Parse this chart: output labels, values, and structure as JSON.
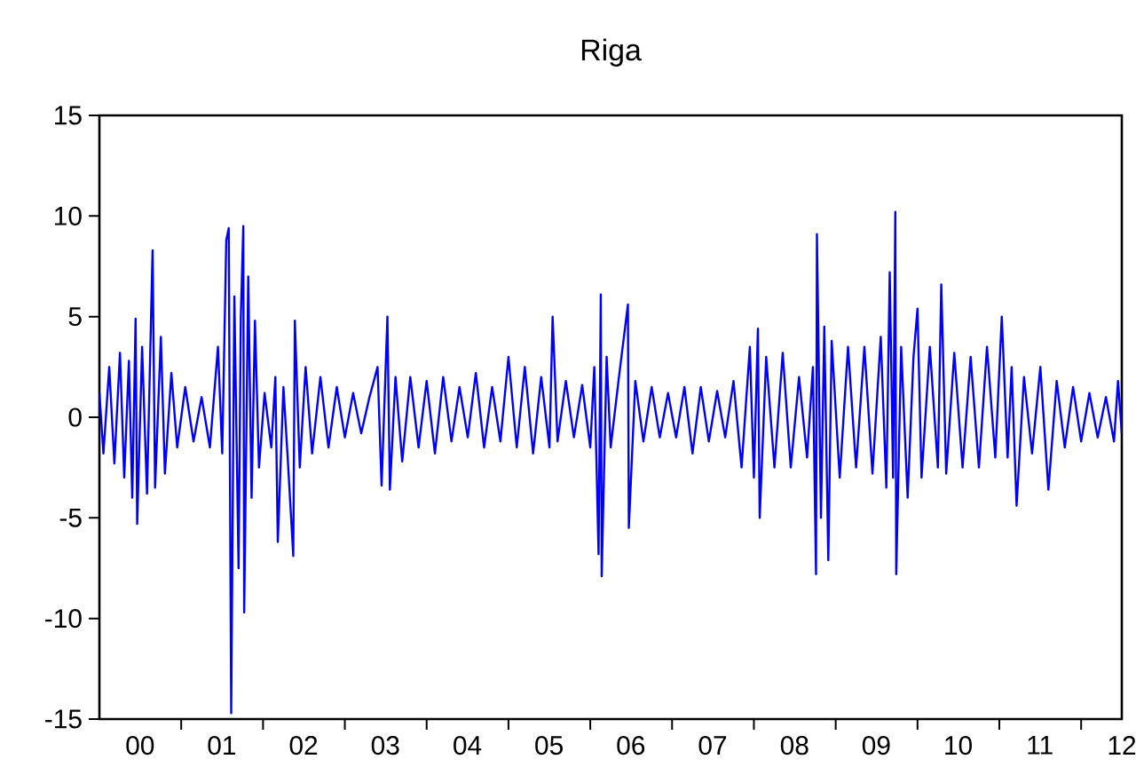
{
  "chart_data": {
    "type": "line",
    "title": "Riga",
    "x": [
      "2000-01-01",
      "2000-01-19",
      "2000-02-14",
      "2000-03-08",
      "2000-04-02",
      "2000-04-21",
      "2000-05-12",
      "2000-05-27",
      "2000-06-11",
      "2000-06-18",
      "2000-07-10",
      "2000-08-01",
      "2000-08-26",
      "2000-09-06",
      "2000-10-02",
      "2000-10-20",
      "2000-11-18",
      "2000-12-14",
      "2001-01-19",
      "2001-02-25",
      "2001-04-02",
      "2001-05-09",
      "2001-06-14",
      "2001-07-03",
      "2001-07-21",
      "2001-08-01",
      "2001-08-12",
      "2001-08-26",
      "2001-09-14",
      "2001-09-24",
      "2001-10-05",
      "2001-10-09",
      "2001-10-27",
      "2001-11-11",
      "2001-11-26",
      "2001-12-14",
      "2002-01-08",
      "2002-02-07",
      "2002-02-25",
      "2002-03-08",
      "2002-04-02",
      "2002-04-21",
      "2002-05-16",
      "2002-05-23",
      "2002-06-14",
      "2002-07-10",
      "2002-08-08",
      "2002-09-14",
      "2002-10-20",
      "2002-11-26",
      "2003-01-01",
      "2003-02-07",
      "2003-03-15",
      "2003-04-21",
      "2003-05-27",
      "2003-06-14",
      "2003-07-10",
      "2003-07-21",
      "2003-08-15",
      "2003-09-14",
      "2003-10-20",
      "2003-11-26",
      "2004-01-01",
      "2004-02-07",
      "2004-03-15",
      "2004-04-21",
      "2004-05-27",
      "2004-07-03",
      "2004-08-08",
      "2004-09-14",
      "2004-10-20",
      "2004-11-26",
      "2005-01-01",
      "2005-02-07",
      "2005-03-15",
      "2005-04-21",
      "2005-05-27",
      "2005-07-03",
      "2005-07-17",
      "2005-08-08",
      "2005-09-14",
      "2005-10-20",
      "2005-11-26",
      "2006-01-01",
      "2006-01-19",
      "2006-02-07",
      "2006-02-17",
      "2006-02-21",
      "2006-03-15",
      "2006-04-02",
      "2006-05-09",
      "2006-06-18",
      "2006-06-22",
      "2006-07-21",
      "2006-08-26",
      "2006-10-02",
      "2006-11-07",
      "2006-12-14",
      "2007-01-19",
      "2007-02-25",
      "2007-04-02",
      "2007-05-09",
      "2007-06-14",
      "2007-07-21",
      "2007-08-26",
      "2007-10-02",
      "2007-11-07",
      "2007-12-14",
      "2008-01-01",
      "2008-01-19",
      "2008-01-27",
      "2008-02-25",
      "2008-04-02",
      "2008-05-09",
      "2008-06-14",
      "2008-07-21",
      "2008-08-26",
      "2008-09-21",
      "2008-10-05",
      "2008-10-09",
      "2008-10-27",
      "2008-11-11",
      "2008-11-29",
      "2008-12-14",
      "2009-01-19",
      "2009-02-25",
      "2009-04-02",
      "2009-05-09",
      "2009-06-14",
      "2009-07-21",
      "2009-08-15",
      "2009-08-30",
      "2009-09-14",
      "2009-09-24",
      "2009-09-28",
      "2009-10-20",
      "2009-11-18",
      "2009-12-14",
      "2010-01-01",
      "2010-01-19",
      "2010-02-25",
      "2010-04-02",
      "2010-04-17",
      "2010-05-09",
      "2010-06-14",
      "2010-07-21",
      "2010-08-26",
      "2010-10-02",
      "2010-11-07",
      "2010-12-14",
      "2011-01-12",
      "2011-02-07",
      "2011-02-25",
      "2011-03-19",
      "2011-04-21",
      "2011-05-27",
      "2011-07-03",
      "2011-08-08",
      "2011-09-14",
      "2011-10-20",
      "2011-11-26",
      "2012-01-01",
      "2012-02-07",
      "2012-03-15",
      "2012-04-21",
      "2012-05-27",
      "2012-06-14",
      "2012-07-01"
    ],
    "series": [
      {
        "color": "#0000ff",
        "values": [
          1.2,
          -1.8,
          2.5,
          -2.3,
          3.2,
          -3.0,
          2.8,
          -4.0,
          4.9,
          -5.3,
          3.5,
          -3.8,
          8.3,
          -3.5,
          4.0,
          -2.8,
          2.2,
          -1.5,
          1.5,
          -1.2,
          1.0,
          -1.5,
          3.5,
          -1.8,
          8.8,
          9.4,
          -14.7,
          6.0,
          -7.5,
          5.0,
          9.5,
          -9.7,
          7.0,
          -4.0,
          4.8,
          -2.5,
          1.2,
          -1.5,
          2.0,
          -6.2,
          1.5,
          -2.0,
          -6.9,
          4.8,
          -2.5,
          2.5,
          -1.8,
          2.0,
          -1.5,
          1.5,
          -1.0,
          1.2,
          -0.8,
          1.0,
          2.5,
          -3.4,
          5.0,
          -3.6,
          2.0,
          -2.2,
          2.0,
          -1.5,
          1.8,
          -1.8,
          2.0,
          -1.2,
          1.5,
          -1.0,
          2.2,
          -1.5,
          1.5,
          -1.2,
          3.0,
          -1.5,
          2.5,
          -1.8,
          2.0,
          -1.5,
          5.0,
          -1.2,
          1.8,
          -1.0,
          1.6,
          -1.5,
          2.5,
          -6.8,
          6.1,
          -7.9,
          3.0,
          -1.5,
          2.0,
          5.6,
          -5.5,
          1.8,
          -1.2,
          1.5,
          -1.0,
          1.2,
          -1.0,
          1.5,
          -1.8,
          1.5,
          -1.2,
          1.3,
          -1.0,
          1.8,
          -2.5,
          3.5,
          -3.0,
          4.4,
          -5.0,
          3.0,
          -2.5,
          3.2,
          -2.5,
          2.0,
          -2.0,
          2.5,
          -7.8,
          9.1,
          -5.0,
          4.5,
          -7.1,
          3.8,
          -3.0,
          3.5,
          -2.5,
          3.5,
          -2.8,
          4.0,
          -3.5,
          7.2,
          -3.0,
          10.2,
          -7.8,
          3.5,
          -4.0,
          3.0,
          5.4,
          -3.0,
          3.5,
          -2.5,
          6.6,
          -2.8,
          3.2,
          -2.5,
          3.0,
          -2.5,
          3.5,
          -2.0,
          5.0,
          -2.0,
          2.5,
          -4.4,
          2.0,
          -1.8,
          2.5,
          -3.6,
          1.8,
          -1.5,
          1.5,
          -1.2,
          1.2,
          -1.0,
          1.0,
          -1.2,
          1.8,
          -0.8
        ]
      }
    ],
    "xlim": [
      "2000-01-01",
      "2012-07-01"
    ],
    "xticks": [
      {
        "value": "2000-07-01",
        "label": "00"
      },
      {
        "value": "2001-01-01",
        "label": null
      },
      {
        "value": "2001-07-01",
        "label": "01"
      },
      {
        "value": "2002-01-01",
        "label": null
      },
      {
        "value": "2002-07-01",
        "label": "02"
      },
      {
        "value": "2003-01-01",
        "label": null
      },
      {
        "value": "2003-07-01",
        "label": "03"
      },
      {
        "value": "2004-01-01",
        "label": null
      },
      {
        "value": "2004-07-01",
        "label": "04"
      },
      {
        "value": "2005-01-01",
        "label": null
      },
      {
        "value": "2005-07-01",
        "label": "05"
      },
      {
        "value": "2006-01-01",
        "label": null
      },
      {
        "value": "2006-07-01",
        "label": "06"
      },
      {
        "value": "2007-01-01",
        "label": null
      },
      {
        "value": "2007-07-01",
        "label": "07"
      },
      {
        "value": "2008-01-01",
        "label": null
      },
      {
        "value": "2008-07-01",
        "label": "08"
      },
      {
        "value": "2009-01-01",
        "label": null
      },
      {
        "value": "2009-07-01",
        "label": "09"
      },
      {
        "value": "2010-01-01",
        "label": null
      },
      {
        "value": "2010-07-01",
        "label": "10"
      },
      {
        "value": "2011-01-01",
        "label": null
      },
      {
        "value": "2011-07-01",
        "label": "11"
      },
      {
        "value": "2012-01-01",
        "label": null
      },
      {
        "value": "2012-07-01",
        "label": "12"
      }
    ],
    "ylim": [
      -15,
      15
    ],
    "yticks": [
      -15,
      -10,
      -5,
      0,
      5,
      10,
      15
    ]
  }
}
